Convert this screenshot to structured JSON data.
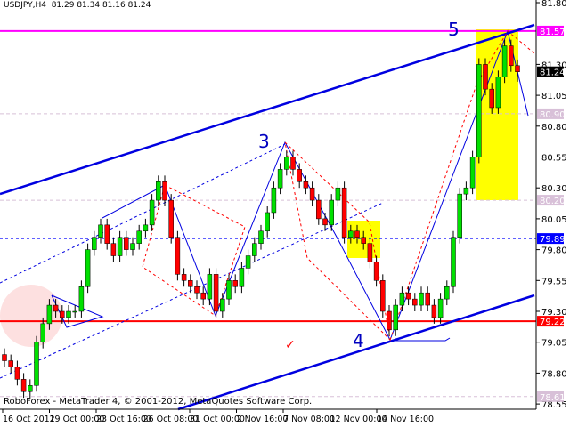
{
  "header": {
    "symbol": "USDJPY,H4",
    "ohlc": "81.29 81.34 81.16 81.24"
  },
  "footer": {
    "copyright": "RoboForex - MetaTrader 4, © 2001-2012, MetaQuotes Software Corp."
  },
  "colors": {
    "bull": "#00e000",
    "bear": "#ff0000",
    "channel": "#0000e0",
    "resistance": "#ff00ff",
    "support": "#ff0000",
    "target_box": "#ffff00"
  },
  "wave_labels": [
    "3",
    "4",
    "5"
  ],
  "chart_data": {
    "type": "candlestick",
    "ylim": [
      78.55,
      81.8
    ],
    "yticks": [
      "81.80",
      "81.30",
      "81.05",
      "80.80",
      "80.55",
      "80.30",
      "80.05",
      "79.80",
      "79.55",
      "79.30",
      "79.05",
      "78.80",
      "78.55"
    ],
    "xticks": [
      "16 Oct 2012",
      "19 Oct 00:00",
      "23 Oct 16:00",
      "26 Oct 08:00",
      "31 Oct 00:00",
      "2 Nov 16:00",
      "7 Nov 08:00",
      "12 Nov 00:00",
      "14 Nov 16:00"
    ],
    "price_labels": [
      {
        "text": "81.57",
        "value": 81.57,
        "bg": "#ff00ff"
      },
      {
        "text": "81.24",
        "value": 81.24,
        "bg": "#000000"
      },
      {
        "text": "80.90",
        "value": 80.9,
        "bg": "#d8c0d8"
      },
      {
        "text": "80.20",
        "value": 80.2,
        "bg": "#d8c0d8"
      },
      {
        "text": "79.89",
        "value": 79.89,
        "bg": "#0000ff"
      },
      {
        "text": "79.22",
        "value": 79.22,
        "bg": "#ff0000"
      },
      {
        "text": "78.61",
        "value": 78.61,
        "bg": "#d8c0d8"
      }
    ],
    "open_first": 78.95,
    "close": [
      78.9,
      78.85,
      78.75,
      78.65,
      78.7,
      79.05,
      79.2,
      79.35,
      79.3,
      79.25,
      79.3,
      79.3,
      79.5,
      79.8,
      79.9,
      80.0,
      79.85,
      79.75,
      79.9,
      79.8,
      79.85,
      79.95,
      80.0,
      80.2,
      80.35,
      80.2,
      79.9,
      79.6,
      79.55,
      79.5,
      79.45,
      79.4,
      79.6,
      79.3,
      79.4,
      79.55,
      79.5,
      79.65,
      79.75,
      79.85,
      79.95,
      80.1,
      80.3,
      80.45,
      80.55,
      80.45,
      80.35,
      80.3,
      80.2,
      80.05,
      80.0,
      80.2,
      80.3,
      79.9,
      79.95,
      79.9,
      79.85,
      79.7,
      79.55,
      79.3,
      79.15,
      79.35,
      79.45,
      79.4,
      79.35,
      79.45,
      79.35,
      79.25,
      79.4,
      79.5,
      79.9,
      80.25,
      80.3,
      80.55,
      81.3,
      81.1,
      80.95,
      81.2,
      81.45,
      81.29,
      81.24
    ],
    "last_high": 81.34,
    "last_low": 81.16
  }
}
